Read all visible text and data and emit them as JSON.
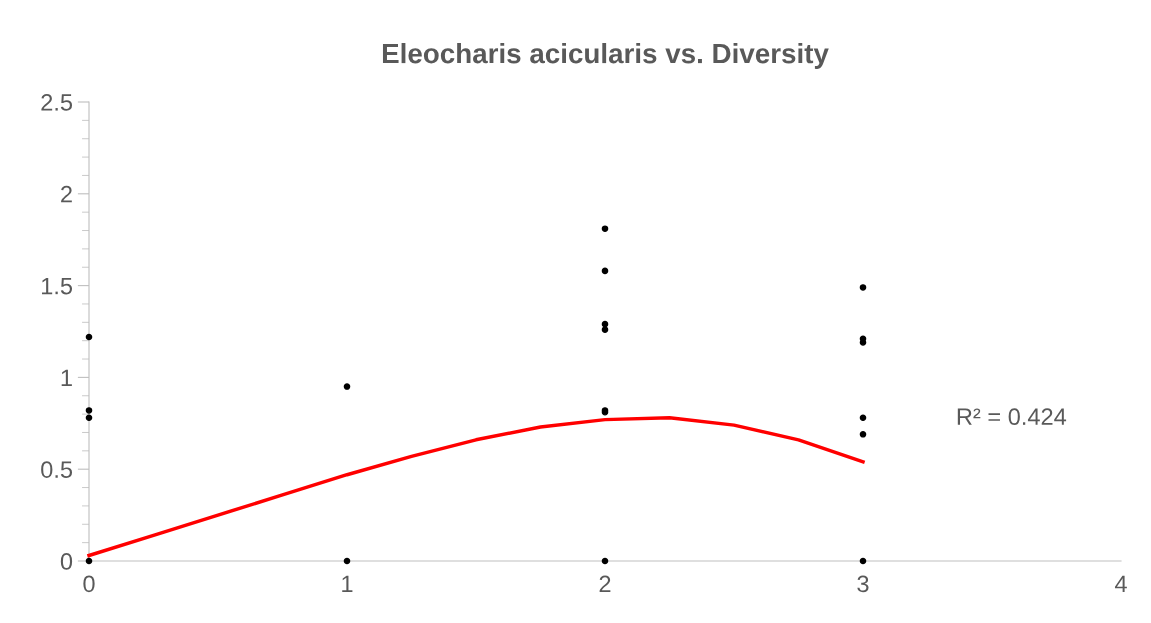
{
  "chart_data": {
    "type": "scatter",
    "title": "Eleocharis acicularis vs. Diversity",
    "series": [
      {
        "color": "#000000",
        "x": [
          0,
          0,
          0,
          0,
          1,
          1,
          2,
          2,
          2,
          2,
          2,
          2,
          2,
          3,
          3,
          3,
          3,
          3,
          3
        ],
        "values": [
          1.22,
          0.82,
          0.78,
          0,
          0.95,
          0,
          1.81,
          1.58,
          1.29,
          1.26,
          0.82,
          0.81,
          0,
          1.49,
          1.21,
          1.19,
          0.78,
          0.69,
          0
        ]
      },
      {
        "type": "line",
        "color": "#ff0000",
        "marker": "none",
        "x": [
          0,
          0.25,
          0.5,
          0.75,
          1,
          1.25,
          1.5,
          1.75,
          2,
          2.25,
          2.5,
          2.75,
          3
        ],
        "values": [
          0.03,
          0.14,
          0.25,
          0.36,
          0.47,
          0.57,
          0.66,
          0.73,
          0.77,
          0.78,
          0.74,
          0.66,
          0.54
        ]
      }
    ],
    "annotations": [
      "R² = 0.424"
    ],
    "marker": "circle",
    "grid": false,
    "legend": false,
    "xlim": [
      0,
      4
    ],
    "xticks": [
      0,
      1,
      2,
      3,
      4
    ],
    "ylim": [
      0,
      2.5
    ],
    "yticks": [
      0,
      0.5,
      1,
      1.5,
      2,
      2.5,
      {
        "value": 0.1,
        "label": null
      },
      {
        "value": 0.2,
        "label": null
      },
      {
        "value": 0.3,
        "label": null
      },
      {
        "value": 0.4,
        "label": null
      },
      {
        "value": 0.6,
        "label": null
      },
      {
        "value": 0.7,
        "label": null
      },
      {
        "value": 0.8,
        "label": null
      },
      {
        "value": 0.9,
        "label": null
      },
      {
        "value": 1.1,
        "label": null
      },
      {
        "value": 1.2,
        "label": null
      },
      {
        "value": 1.3,
        "label": null
      },
      {
        "value": 1.4,
        "label": null
      },
      {
        "value": 1.6,
        "label": null
      },
      {
        "value": 1.7,
        "label": null
      },
      {
        "value": 1.8,
        "label": null
      },
      {
        "value": 1.9,
        "label": null
      },
      {
        "value": 2.1,
        "label": null
      },
      {
        "value": 2.2,
        "label": null
      },
      {
        "value": 2.3,
        "label": null
      },
      {
        "value": 2.4,
        "label": null
      }
    ]
  }
}
